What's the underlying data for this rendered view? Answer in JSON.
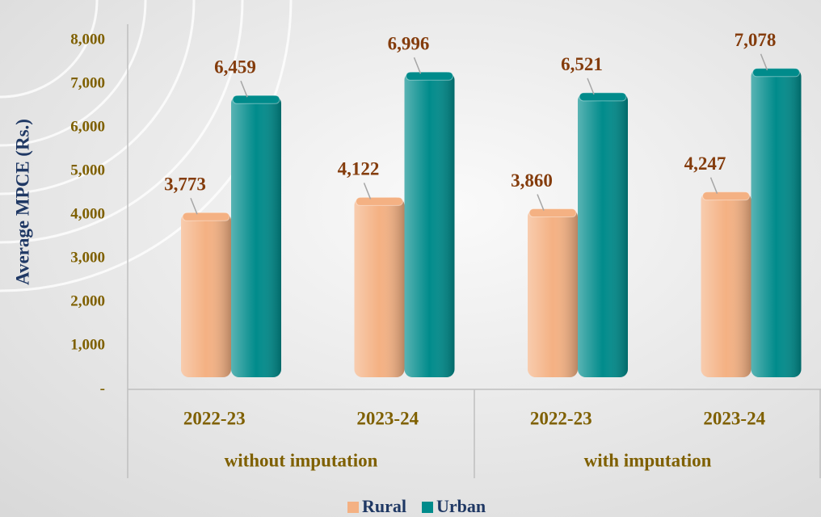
{
  "chart_data": {
    "type": "bar",
    "y_axis_label": "Average MPCE (Rs.)",
    "categories": [
      "2022-23",
      "2023-24",
      "2022-23",
      "2023-24"
    ],
    "category_groups": [
      "without imputation",
      "with imputation"
    ],
    "series": [
      {
        "name": "Rural",
        "color": "#f4b183",
        "values": [
          3773,
          4122,
          3860,
          4247
        ],
        "value_labels": [
          "3,773",
          "4,122",
          "3,860",
          "4,247"
        ]
      },
      {
        "name": "Urban",
        "color": "#008b8b",
        "values": [
          6459,
          6996,
          6521,
          7078
        ],
        "value_labels": [
          "6,459",
          "6,996",
          "6,521",
          "7,078"
        ]
      }
    ],
    "ylim": [
      0,
      8000
    ],
    "yticks": [
      {
        "value": 0,
        "label": "-"
      },
      {
        "value": 1000,
        "label": "1,000"
      },
      {
        "value": 2000,
        "label": "2,000"
      },
      {
        "value": 3000,
        "label": "3,000"
      },
      {
        "value": 4000,
        "label": "4,000"
      },
      {
        "value": 5000,
        "label": "5,000"
      },
      {
        "value": 6000,
        "label": "6,000"
      },
      {
        "value": 7000,
        "label": "7,000"
      },
      {
        "value": 8000,
        "label": "8,000"
      }
    ],
    "legend": "bottom"
  }
}
